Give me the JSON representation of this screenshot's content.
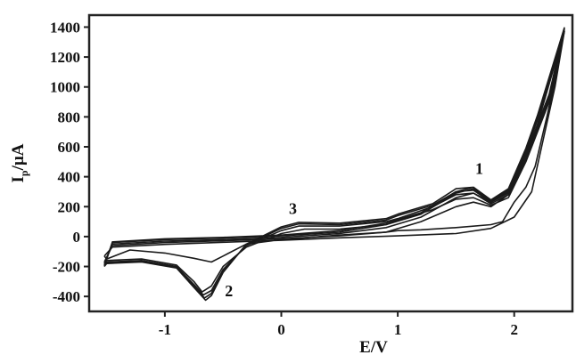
{
  "chart_data": {
    "type": "line",
    "title": "",
    "xlabel": "E/V",
    "ylabel_main": "I",
    "ylabel_sub": "p",
    "ylabel_rest": "/µA",
    "xlim": [
      -1.65,
      2.5
    ],
    "ylim": [
      -500,
      1480
    ],
    "x_ticks": [
      -1,
      0,
      1,
      2
    ],
    "x_tick_labels": [
      "-1",
      "0",
      "1",
      "2"
    ],
    "y_ticks": [
      -400,
      -200,
      0,
      200,
      400,
      600,
      800,
      1000,
      1200,
      1400
    ],
    "y_tick_labels": [
      "-400",
      "-200",
      "0",
      "200",
      "400",
      "600",
      "800",
      "1000",
      "1200",
      "1400"
    ],
    "grid": false,
    "legend": "none",
    "line_color": "#1a1a1a",
    "annotations": [
      {
        "text": "1",
        "x": 1.7,
        "y": 420
      },
      {
        "text": "2",
        "x": -0.45,
        "y": -400
      },
      {
        "text": "3",
        "x": 0.1,
        "y": 150
      }
    ],
    "series": [
      {
        "values": [
          [
            -1.52,
            -130
          ],
          [
            -1.45,
            -70
          ],
          [
            -1.0,
            -52
          ],
          [
            -0.5,
            -38
          ],
          [
            0,
            -25
          ],
          [
            0.5,
            -8
          ],
          [
            1.0,
            5
          ],
          [
            1.5,
            20
          ],
          [
            1.8,
            55
          ],
          [
            2.0,
            130
          ],
          [
            2.15,
            300
          ],
          [
            2.25,
            650
          ],
          [
            2.35,
            1000
          ],
          [
            2.43,
            1370
          ],
          [
            2.38,
            1150
          ],
          [
            2.28,
            800
          ],
          [
            2.18,
            470
          ],
          [
            2.1,
            330
          ],
          [
            2.0,
            230
          ],
          [
            1.9,
            100
          ],
          [
            1.8,
            80
          ],
          [
            1.5,
            60
          ],
          [
            1.2,
            45
          ],
          [
            1.0,
            40
          ],
          [
            0.9,
            30
          ],
          [
            0.5,
            10
          ],
          [
            0,
            -20
          ],
          [
            -0.3,
            -50
          ],
          [
            -0.5,
            -130
          ],
          [
            -0.6,
            -170
          ],
          [
            -0.75,
            -145
          ],
          [
            -1.0,
            -110
          ],
          [
            -1.3,
            -90
          ],
          [
            -1.5,
            -150
          ],
          [
            -1.52,
            -130
          ]
        ]
      },
      {
        "values": [
          [
            -1.52,
            -170
          ],
          [
            -1.45,
            -60
          ],
          [
            -1.0,
            -40
          ],
          [
            -0.5,
            -28
          ],
          [
            0,
            -15
          ],
          [
            0.5,
            5
          ],
          [
            0.9,
            30
          ],
          [
            1.2,
            100
          ],
          [
            1.5,
            200
          ],
          [
            1.65,
            230
          ],
          [
            1.8,
            200
          ],
          [
            1.95,
            280
          ],
          [
            2.1,
            500
          ],
          [
            2.2,
            750
          ],
          [
            2.43,
            1370
          ],
          [
            2.3,
            900
          ],
          [
            2.1,
            500
          ],
          [
            1.95,
            260
          ],
          [
            1.8,
            210
          ],
          [
            1.65,
            260
          ],
          [
            1.5,
            250
          ],
          [
            1.3,
            180
          ],
          [
            1.0,
            110
          ],
          [
            0.9,
            80
          ],
          [
            0.5,
            50
          ],
          [
            0.2,
            50
          ],
          [
            0,
            20
          ],
          [
            -0.3,
            -70
          ],
          [
            -0.5,
            -200
          ],
          [
            -0.6,
            -330
          ],
          [
            -0.68,
            -370
          ],
          [
            -0.75,
            -300
          ],
          [
            -0.9,
            -190
          ],
          [
            -1.2,
            -150
          ],
          [
            -1.5,
            -160
          ],
          [
            -1.52,
            -170
          ]
        ]
      },
      {
        "values": [
          [
            -1.52,
            -180
          ],
          [
            -1.45,
            -50
          ],
          [
            -1.0,
            -30
          ],
          [
            -0.5,
            -20
          ],
          [
            0,
            -5
          ],
          [
            0.5,
            20
          ],
          [
            0.9,
            60
          ],
          [
            1.2,
            130
          ],
          [
            1.5,
            260
          ],
          [
            1.65,
            290
          ],
          [
            1.8,
            230
          ],
          [
            1.95,
            300
          ],
          [
            2.1,
            560
          ],
          [
            2.2,
            780
          ],
          [
            2.43,
            1380
          ],
          [
            2.3,
            920
          ],
          [
            2.1,
            520
          ],
          [
            1.95,
            280
          ],
          [
            1.8,
            220
          ],
          [
            1.65,
            290
          ],
          [
            1.5,
            280
          ],
          [
            1.3,
            200
          ],
          [
            1.0,
            120
          ],
          [
            0.9,
            100
          ],
          [
            0.5,
            70
          ],
          [
            0.15,
            70
          ],
          [
            0,
            40
          ],
          [
            -0.3,
            -60
          ],
          [
            -0.5,
            -220
          ],
          [
            -0.6,
            -360
          ],
          [
            -0.67,
            -390
          ],
          [
            -0.75,
            -320
          ],
          [
            -0.9,
            -200
          ],
          [
            -1.2,
            -160
          ],
          [
            -1.5,
            -170
          ],
          [
            -1.52,
            -180
          ]
        ]
      },
      {
        "values": [
          [
            -1.52,
            -190
          ],
          [
            -1.45,
            -40
          ],
          [
            -1.0,
            -20
          ],
          [
            -0.5,
            -10
          ],
          [
            0,
            5
          ],
          [
            0.5,
            30
          ],
          [
            0.9,
            80
          ],
          [
            1.2,
            150
          ],
          [
            1.5,
            290
          ],
          [
            1.65,
            320
          ],
          [
            1.8,
            240
          ],
          [
            1.95,
            310
          ],
          [
            2.1,
            580
          ],
          [
            2.2,
            800
          ],
          [
            2.43,
            1390
          ],
          [
            2.3,
            940
          ],
          [
            2.1,
            540
          ],
          [
            1.95,
            290
          ],
          [
            1.8,
            230
          ],
          [
            1.65,
            310
          ],
          [
            1.5,
            300
          ],
          [
            1.3,
            210
          ],
          [
            1.0,
            140
          ],
          [
            0.9,
            110
          ],
          [
            0.5,
            80
          ],
          [
            0.15,
            85
          ],
          [
            0,
            55
          ],
          [
            -0.3,
            -55
          ],
          [
            -0.5,
            -230
          ],
          [
            -0.6,
            -380
          ],
          [
            -0.66,
            -410
          ],
          [
            -0.75,
            -330
          ],
          [
            -0.9,
            -205
          ],
          [
            -1.2,
            -165
          ],
          [
            -1.5,
            -175
          ],
          [
            -1.52,
            -190
          ]
        ]
      },
      {
        "values": [
          [
            -1.52,
            -200
          ],
          [
            -1.45,
            -35
          ],
          [
            -1.0,
            -15
          ],
          [
            -0.5,
            -5
          ],
          [
            0,
            10
          ],
          [
            0.5,
            40
          ],
          [
            0.9,
            90
          ],
          [
            1.2,
            160
          ],
          [
            1.5,
            300
          ],
          [
            1.65,
            330
          ],
          [
            1.8,
            245
          ],
          [
            1.95,
            320
          ],
          [
            2.1,
            590
          ],
          [
            2.2,
            810
          ],
          [
            2.43,
            1395
          ],
          [
            2.3,
            950
          ],
          [
            2.1,
            550
          ],
          [
            1.95,
            300
          ],
          [
            1.8,
            235
          ],
          [
            1.65,
            330
          ],
          [
            1.5,
            320
          ],
          [
            1.3,
            220
          ],
          [
            1.0,
            150
          ],
          [
            0.9,
            120
          ],
          [
            0.5,
            90
          ],
          [
            0.15,
            95
          ],
          [
            0,
            65
          ],
          [
            -0.3,
            -50
          ],
          [
            -0.5,
            -240
          ],
          [
            -0.6,
            -395
          ],
          [
            -0.65,
            -425
          ],
          [
            -0.75,
            -340
          ],
          [
            -0.9,
            -210
          ],
          [
            -1.2,
            -170
          ],
          [
            -1.5,
            -180
          ],
          [
            -1.52,
            -200
          ]
        ]
      }
    ]
  }
}
